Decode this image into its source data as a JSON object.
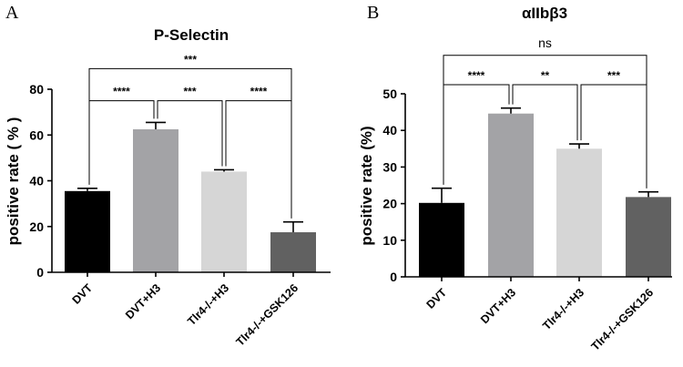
{
  "chart_data": [
    {
      "type": "bar",
      "panel": "A",
      "title": "P-Selectin",
      "ylabel": "positive rate ( % )",
      "xlabel": "",
      "ylim": [
        0,
        80
      ],
      "yticks": [
        0,
        20,
        40,
        60,
        80
      ],
      "categories": [
        "DVT",
        "DVT+H3",
        "Tlr4-/-+H3",
        "Tlr4-/-+GSK126"
      ],
      "values": [
        35.5,
        62.5,
        44,
        17.5
      ],
      "errors": [
        1.2,
        3,
        0.8,
        4.5
      ],
      "colors": [
        "#000000",
        "#a3a3a6",
        "#d6d6d6",
        "#616161"
      ],
      "significance": [
        {
          "from": 0,
          "to": 1,
          "label": "****",
          "y": 75
        },
        {
          "from": 1,
          "to": 2,
          "label": "***",
          "y": 75
        },
        {
          "from": 2,
          "to": 3,
          "label": "****",
          "y": 75
        },
        {
          "from": 0,
          "to": 3,
          "label": "***",
          "y": 89
        }
      ]
    },
    {
      "type": "bar",
      "panel": "B",
      "title": "αIIbβ3",
      "ylabel": "positive rate (%)",
      "xlabel": "",
      "ylim": [
        0,
        50
      ],
      "yticks": [
        0,
        10,
        20,
        30,
        40,
        50
      ],
      "categories": [
        "DVT",
        "DVT+H3",
        "Tlr4-/-+H3",
        "Tlr4-/-+GSK126"
      ],
      "values": [
        20.2,
        44.6,
        35,
        21.8
      ],
      "errors": [
        4,
        1.5,
        1.3,
        1.4
      ],
      "colors": [
        "#000000",
        "#a3a3a6",
        "#d6d6d6",
        "#616161"
      ],
      "significance": [
        {
          "from": 0,
          "to": 1,
          "label": "****",
          "y": 52.5
        },
        {
          "from": 1,
          "to": 2,
          "label": "**",
          "y": 52.5
        },
        {
          "from": 2,
          "to": 3,
          "label": "***",
          "y": 52.5
        },
        {
          "from": 0,
          "to": 3,
          "label": "ns",
          "y": 60.5
        }
      ]
    }
  ]
}
